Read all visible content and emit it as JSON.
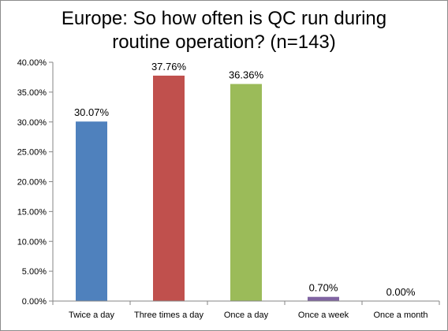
{
  "chart_data": {
    "type": "bar",
    "title_lines": [
      "Europe: So how often is QC run during",
      "routine operation? (n=143)"
    ],
    "categories": [
      "Twice a day",
      "Three times a day",
      "Once a day",
      "Once a week",
      "Once a month"
    ],
    "values": [
      30.07,
      37.76,
      36.36,
      0.7,
      0.0
    ],
    "data_labels": [
      "30.07%",
      "37.76%",
      "36.36%",
      "0.70%",
      "0.00%"
    ],
    "colors": [
      "#4f81bd",
      "#c0504d",
      "#9bbb59",
      "#8064a2",
      "#4bacc6"
    ],
    "ylim": [
      0,
      40
    ],
    "yticks": [
      0,
      5,
      10,
      15,
      20,
      25,
      30,
      35,
      40
    ],
    "ytick_labels": [
      "0.00%",
      "5.00%",
      "10.00%",
      "15.00%",
      "20.00%",
      "25.00%",
      "30.00%",
      "35.00%",
      "40.00%"
    ],
    "grid": false,
    "legend": false
  }
}
